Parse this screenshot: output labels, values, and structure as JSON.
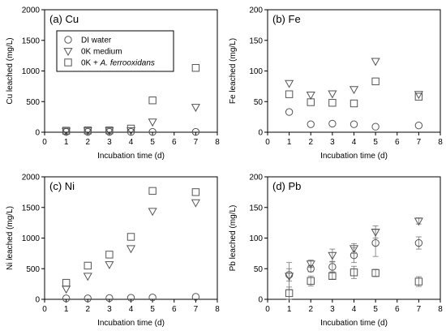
{
  "chart_data": [
    {
      "type": "scatter",
      "title": "(a) Cu",
      "xlabel": "Incubation time (d)",
      "ylabel": "Cu leached (mg/L)",
      "xlim": [
        0,
        8
      ],
      "ylim": [
        0,
        2000
      ],
      "xticks": [
        0,
        1,
        2,
        3,
        4,
        5,
        6,
        7,
        8
      ],
      "yticks": [
        0,
        500,
        1000,
        1500,
        2000
      ],
      "grid": false,
      "legend": "top-left",
      "series": [
        {
          "name": "DI water",
          "marker": "circle",
          "x": [
            1,
            2,
            3,
            4,
            5,
            7
          ],
          "y": [
            5,
            5,
            5,
            5,
            5,
            5
          ]
        },
        {
          "name": "0K medium",
          "marker": "triangle-down",
          "x": [
            1,
            2,
            3,
            4,
            5,
            7
          ],
          "y": [
            20,
            25,
            25,
            30,
            170,
            410
          ]
        },
        {
          "name": "0K + A. ferrooxidans",
          "marker": "square",
          "x": [
            1,
            2,
            3,
            4,
            5,
            7
          ],
          "y": [
            25,
            30,
            30,
            60,
            520,
            1050
          ]
        }
      ]
    },
    {
      "type": "scatter",
      "title": "(b) Fe",
      "xlabel": "Incubation time (d)",
      "ylabel": "Fe leached (mg/L)",
      "xlim": [
        0,
        8
      ],
      "ylim": [
        0,
        200
      ],
      "xticks": [
        0,
        1,
        2,
        3,
        4,
        5,
        6,
        7,
        8
      ],
      "yticks": [
        0,
        50,
        100,
        150,
        200
      ],
      "grid": false,
      "series": [
        {
          "name": "DI water",
          "marker": "circle",
          "x": [
            1,
            2,
            3,
            4,
            5,
            7
          ],
          "y": [
            33,
            13,
            14,
            13,
            9,
            11
          ]
        },
        {
          "name": "0K medium",
          "marker": "triangle-down",
          "x": [
            1,
            2,
            3,
            4,
            5,
            7
          ],
          "y": [
            80,
            61,
            63,
            70,
            116,
            62
          ]
        },
        {
          "name": "0K + A. ferrooxidans",
          "marker": "square",
          "x": [
            1,
            2,
            3,
            4,
            5,
            7
          ],
          "y": [
            62,
            49,
            48,
            47,
            83,
            58
          ]
        }
      ]
    },
    {
      "type": "scatter",
      "title": "(c) Ni",
      "xlabel": "Incubation time (d)",
      "ylabel": "Ni leached (mg/L)",
      "xlim": [
        0,
        8
      ],
      "ylim": [
        0,
        2000
      ],
      "xticks": [
        0,
        1,
        2,
        3,
        4,
        5,
        6,
        7,
        8
      ],
      "yticks": [
        0,
        500,
        1000,
        1500,
        2000
      ],
      "grid": false,
      "series": [
        {
          "name": "DI water",
          "marker": "circle",
          "x": [
            1,
            2,
            3,
            4,
            5,
            7
          ],
          "y": [
            15,
            15,
            20,
            25,
            30,
            40
          ]
        },
        {
          "name": "0K medium",
          "marker": "triangle-down",
          "x": [
            1,
            2,
            3,
            4,
            5,
            7
          ],
          "y": [
            170,
            380,
            570,
            830,
            1440,
            1580
          ]
        },
        {
          "name": "0K + A. ferrooxidans",
          "marker": "square",
          "x": [
            1,
            2,
            3,
            4,
            5,
            7
          ],
          "y": [
            270,
            550,
            730,
            1020,
            1770,
            1750
          ]
        }
      ]
    },
    {
      "type": "scatter",
      "title": "(d) Pb",
      "xlabel": "Incubation time (d)",
      "ylabel": "Pb leached (mg/L)",
      "xlim": [
        0,
        8
      ],
      "ylim": [
        0,
        200
      ],
      "xticks": [
        0,
        1,
        2,
        3,
        4,
        5,
        6,
        7,
        8
      ],
      "yticks": [
        0,
        50,
        100,
        150,
        200
      ],
      "grid": false,
      "series": [
        {
          "name": "DI water",
          "marker": "circle",
          "x": [
            1,
            2,
            3,
            4,
            5,
            7
          ],
          "y": [
            40,
            50,
            53,
            72,
            92,
            92
          ],
          "err": [
            10,
            5,
            8,
            12,
            22,
            10
          ]
        },
        {
          "name": "0K medium",
          "marker": "triangle-down",
          "x": [
            1,
            2,
            3,
            4,
            5,
            7
          ],
          "y": [
            38,
            58,
            72,
            83,
            110,
            128
          ],
          "err": [
            22,
            6,
            10,
            8,
            10,
            5
          ]
        },
        {
          "name": "0K + A. ferrooxidans",
          "marker": "square",
          "x": [
            1,
            2,
            3,
            4,
            5,
            7
          ],
          "y": [
            10,
            30,
            38,
            44,
            43,
            29
          ],
          "err": [
            10,
            8,
            5,
            10,
            6,
            8
          ]
        }
      ]
    }
  ]
}
